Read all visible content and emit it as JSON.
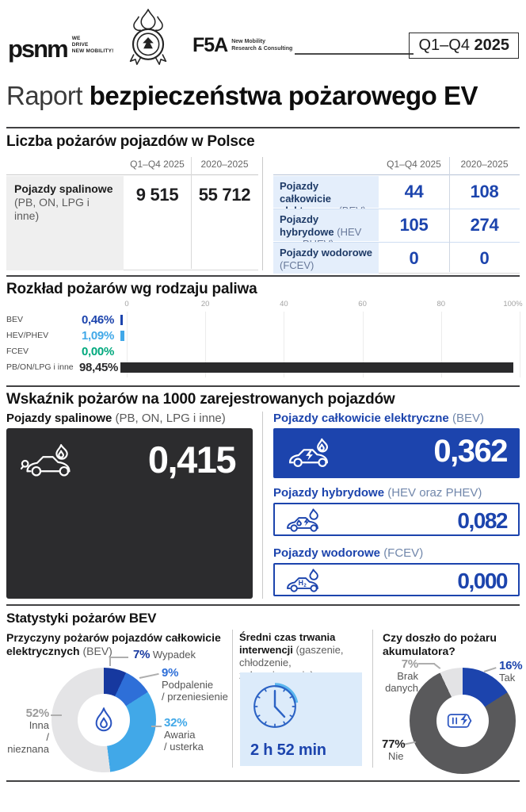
{
  "theme": {
    "blue": "#1c44ad",
    "navy": "#16389f",
    "mid_blue": "#2e6fd8",
    "light_blue": "#41a8e8",
    "green": "#00a87d",
    "dark_bar": "#2a2a2c",
    "gray_slice": "#e4e4e6",
    "dark_gray_slice": "#59595b"
  },
  "header": {
    "psnm_logo": "psnm",
    "psnm_tagline_l1": "WE",
    "psnm_tagline_l2": "DRIVE",
    "psnm_tagline_l3": "NEW MOBILITY!",
    "f5a_logo": "F5A",
    "f5a_tagline_l1": "New Mobility",
    "f5a_tagline_l2": "Research & Consulting",
    "badge_prefix": "Q1–Q4",
    "badge_year": "2025"
  },
  "title": {
    "light": "Raport",
    "bold": "bezpieczeństwa pożarowego EV"
  },
  "fires": {
    "heading": "Liczba pożarów pojazdów w Polsce",
    "col_headers": [
      "Q1–Q4 2025",
      "2020–2025"
    ],
    "combustion": {
      "label": "Pojazdy spalinowe",
      "sublabel": "(PB, ON, LPG i inne)",
      "values": [
        "9 515",
        "55 712"
      ]
    },
    "ev_rows": [
      {
        "label": "Pojazdy całkowicie elektryczne",
        "sublabel": "(BEV)",
        "values": [
          "44",
          "108"
        ]
      },
      {
        "label": "Pojazdy hybrydowe",
        "sublabel": "(HEV oraz PHEV)",
        "values": [
          "105",
          "274"
        ]
      },
      {
        "label": "Pojazdy wodorowe",
        "sublabel": "(FCEV)",
        "values": [
          "0",
          "0"
        ]
      }
    ]
  },
  "distribution": {
    "heading": "Rozkład pożarów wg rodzaju paliwa",
    "ticks": [
      "0",
      "20",
      "40",
      "60",
      "80",
      "100%"
    ],
    "rows": [
      {
        "label": "BEV",
        "value": "0,46%",
        "pct": 0.46,
        "color": "#1c44ad"
      },
      {
        "label": "HEV/PHEV",
        "value": "1,09%",
        "pct": 1.09,
        "color": "#41a8e8"
      },
      {
        "label": "FCEV",
        "value": "0,00%",
        "pct": 0,
        "color": "#00a87d"
      },
      {
        "label": "PB/ON/LPG i inne",
        "value": "98,45%",
        "pct": 98.45,
        "color": "#2a2a2c"
      }
    ]
  },
  "rate": {
    "heading": "Wskaźnik pożarów na 1000 zarejestrowanych pojazdów",
    "combustion": {
      "label": "Pojazdy spalinowe",
      "sublabel": "(PB, ON, LPG i inne)",
      "value": "0,415"
    },
    "bev": {
      "label": "Pojazdy całkowicie elektryczne",
      "sublabel": "(BEV)",
      "value": "0,362"
    },
    "hybrid": {
      "label": "Pojazdy hybrydowe",
      "sublabel": "(HEV oraz PHEV)",
      "value": "0,082"
    },
    "hydrogen": {
      "label": "Pojazdy wodorowe",
      "sublabel": "(FCEV)",
      "value": "0,000"
    }
  },
  "bev_stats": {
    "heading": "Statystyki pożarów BEV",
    "causes": {
      "title": "Przyczyny pożarów pojazdów całkowicie elektrycznych",
      "note": "(BEV)",
      "slices": [
        {
          "pct_label": "7%",
          "label": "Wypadek",
          "l1": "Wypadek",
          "l2": "",
          "value": 7,
          "color": "#16389f",
          "text_color": "#16389f"
        },
        {
          "pct_label": "9%",
          "label": "Podpalenie / przeniesienie",
          "l1": "Podpalenie",
          "l2": "/ przeniesienie",
          "value": 9,
          "color": "#2e6fd8",
          "text_color": "#2e6fd8"
        },
        {
          "pct_label": "32%",
          "label": "Awaria / usterka",
          "l1": "Awaria",
          "l2": "/ usterka",
          "value": 32,
          "color": "#41a8e8",
          "text_color": "#41a8e8"
        },
        {
          "pct_label": "52%",
          "label": "Inna / nieznana",
          "l1": "Inna",
          "l2": "/ nieznana",
          "value": 52,
          "color": "#e4e4e6",
          "text_color": "#9b9b9b"
        }
      ]
    },
    "intervention": {
      "title": "Średni czas trwania interwencji",
      "note": "(gaszenie, chłodzenie, zabezpieczanie)",
      "duration": "2 h 52 min"
    },
    "battery": {
      "title": "Czy doszło do pożaru akumulatora?",
      "slices": [
        {
          "pct_label": "16%",
          "label": "Tak",
          "l1": "Tak",
          "l2": "",
          "value": 16,
          "color": "#1c44ad",
          "text_color": "#1c44ad"
        },
        {
          "pct_label": "77%",
          "label": "Nie",
          "l1": "Nie",
          "l2": "",
          "value": 77,
          "color": "#59595b",
          "text_color": "#1d1d1f"
        },
        {
          "pct_label": "7%",
          "label": "Brak danych",
          "l1": "Brak",
          "l2": "danych",
          "value": 7,
          "color": "#e3e3e5",
          "text_color": "#9b9b9b"
        }
      ]
    }
  },
  "chart_data": [
    {
      "type": "table",
      "title": "Liczba pożarów pojazdów w Polsce",
      "columns": [
        "Pojazd",
        "Q1–Q4 2025",
        "2020–2025"
      ],
      "rows": [
        [
          "Pojazdy spalinowe (PB, ON, LPG i inne)",
          "9 515",
          "55 712"
        ],
        [
          "Pojazdy całkowicie elektryczne (BEV)",
          "44",
          "108"
        ],
        [
          "Pojazdy hybrydowe (HEV oraz PHEV)",
          "105",
          "274"
        ],
        [
          "Pojazdy wodorowe (FCEV)",
          "0",
          "0"
        ]
      ]
    },
    {
      "type": "bar",
      "orientation": "horizontal",
      "title": "Rozkład pożarów wg rodzaju paliwa",
      "categories": [
        "BEV",
        "HEV/PHEV",
        "FCEV",
        "PB/ON/LPG i inne"
      ],
      "values": [
        0.46,
        1.09,
        0.0,
        98.45
      ],
      "unit": "%",
      "xlim": [
        0,
        100
      ],
      "xticks": [
        0,
        20,
        40,
        60,
        80,
        100
      ],
      "grid": true
    },
    {
      "type": "bar",
      "title": "Wskaźnik pożarów na 1000 zarejestrowanych pojazdów",
      "categories": [
        "Pojazdy spalinowe (PB, ON, LPG i inne)",
        "Pojazdy całkowicie elektryczne (BEV)",
        "Pojazdy hybrydowe (HEV oraz PHEV)",
        "Pojazdy wodorowe (FCEV)"
      ],
      "values": [
        0.415,
        0.362,
        0.082,
        0.0
      ]
    },
    {
      "type": "pie",
      "title": "Przyczyny pożarów pojazdów całkowicie elektrycznych (BEV)",
      "labels": [
        "Wypadek",
        "Podpalenie / przeniesienie",
        "Awaria / usterka",
        "Inna / nieznana"
      ],
      "values": [
        7,
        9,
        32,
        52
      ],
      "unit": "%"
    },
    {
      "type": "pie",
      "title": "Czy doszło do pożaru akumulatora?",
      "labels": [
        "Tak",
        "Nie",
        "Brak danych"
      ],
      "values": [
        16,
        77,
        7
      ],
      "unit": "%"
    }
  ]
}
